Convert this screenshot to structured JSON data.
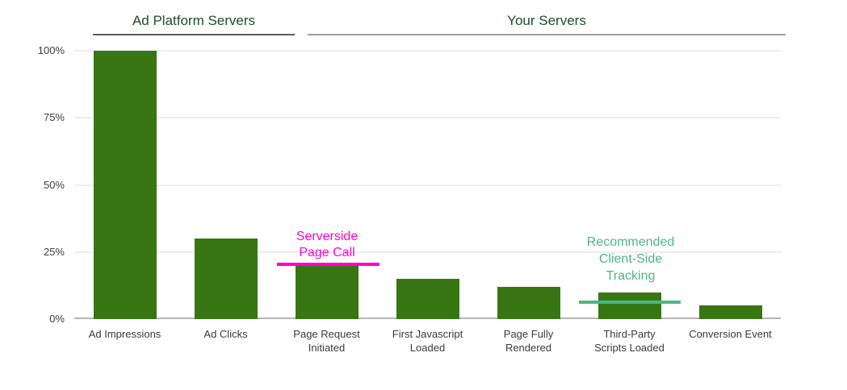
{
  "colors": {
    "bar": "#377613",
    "section_title": "#1f4d2b",
    "serverside_annotation": "#ff00cc",
    "client_side_annotation": "#4db583"
  },
  "chart_data": {
    "type": "bar",
    "title": "",
    "xlabel": "",
    "ylabel": "",
    "categories": [
      "Ad Impressions",
      "Ad Clicks",
      "Page Request Initiated",
      "First Javascript Loaded",
      "Page Fully Rendered",
      "Third-Party Scripts Loaded",
      "Conversion Event"
    ],
    "tick_labels_display": [
      "Ad Impressions",
      "Ad Clicks",
      "Page Request\nInitiated",
      "First Javascript\nLoaded",
      "Page Fully\nRendered",
      "Third-Party\nScripts Loaded",
      "Conversion Event"
    ],
    "values": [
      100,
      30,
      20,
      15,
      12,
      10,
      5
    ],
    "unit": "%",
    "ylim": [
      0,
      100
    ],
    "yticks": [
      0,
      25,
      50,
      75,
      100
    ],
    "ytick_labels": [
      "0%",
      "25%",
      "50%",
      "75%",
      "100%"
    ],
    "grid": true,
    "legend": "none",
    "bar_color": "#377613",
    "group_headers": [
      {
        "label": "Ad Platform Servers",
        "span": [
          0,
          1
        ]
      },
      {
        "label": "Your Servers",
        "span": [
          2,
          6
        ]
      }
    ],
    "annotations": [
      {
        "text": "Serverside Page Call",
        "label_lines": [
          "Serverside",
          "Page Call"
        ],
        "line_value_pct": 20,
        "color": "#ff00cc"
      },
      {
        "text": "Recommended Client-Side Tracking",
        "label_lines": [
          "Recommended",
          "Client-Side",
          "Tracking"
        ],
        "line_value_pct": 6,
        "color": "#4db583"
      }
    ]
  }
}
